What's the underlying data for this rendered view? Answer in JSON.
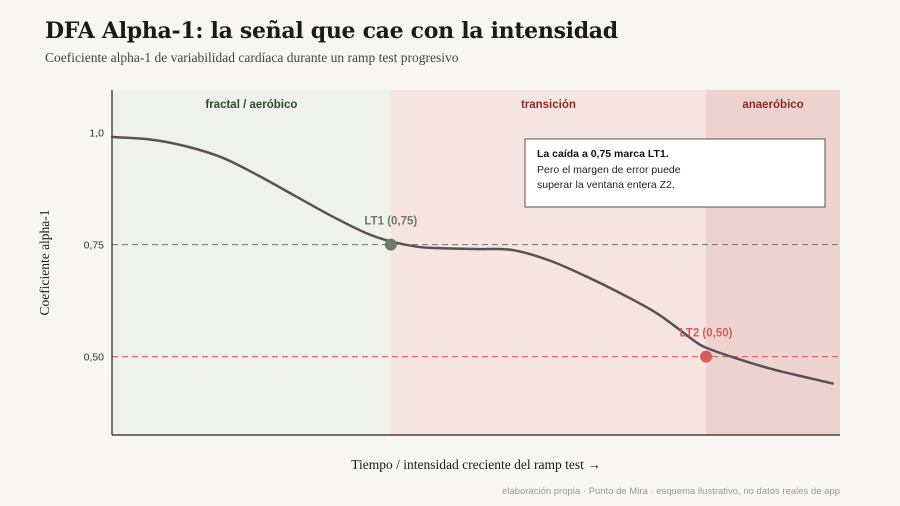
{
  "title": "DFA Alpha-1: la señal que cae con la intensidad",
  "subtitle": "Coeficiente alpha-1 de variabilidad cardíaca durante un ramp test progresivo",
  "footer": "elaboración propia · Punto de Mira · esquema ilustrativo, no datos reales de app",
  "colors": {
    "zone_aerobic": "#eff1ec",
    "zone_transition": "#f6e4e1",
    "zone_anaerobic": "#edd3cf",
    "curve": "#5a5252",
    "lt1": "#6f7a6a",
    "lt2": "#d45f5a",
    "label_aerobic": "#2f4a34",
    "label_other": "#8a2d2a"
  },
  "chart_data": {
    "type": "line",
    "title": "DFA Alpha-1: la señal que cae con la intensidad",
    "subtitle": "Coeficiente alpha-1 de variabilidad cardíaca durante un ramp test progresivo",
    "xlabel": "Tiempo / intensidad creciente del ramp test →",
    "ylabel": "Coeficiente alpha-1",
    "xlim": [
      0,
      100
    ],
    "ylim": [
      0.325,
      1.095
    ],
    "yticks": [
      1.0,
      0.75,
      0.5
    ],
    "ytick_labels": [
      "1,0",
      "0,75",
      "0,50"
    ],
    "grid": false,
    "zones": [
      {
        "label": "fractal / aeróbico",
        "x0": 0,
        "x1": 38.3
      },
      {
        "label": "transición",
        "x0": 38.3,
        "x1": 81.6
      },
      {
        "label": "anaeróbico",
        "x0": 81.6,
        "x1": 100
      }
    ],
    "thresholds": [
      {
        "label": "LT1 (0,75)",
        "y": 0.75,
        "x": 38.3
      },
      {
        "label": "LT2 (0,50)",
        "y": 0.5,
        "x": 81.6
      }
    ],
    "series": [
      {
        "x": [
          0,
          5,
          10,
          15,
          20,
          25,
          30,
          35,
          38.3,
          42,
          45,
          50,
          55,
          60,
          65,
          70,
          75,
          80,
          81.6,
          85,
          90,
          95,
          99
        ],
        "values": [
          0.99,
          0.985,
          0.97,
          0.945,
          0.905,
          0.86,
          0.815,
          0.775,
          0.757,
          0.745,
          0.742,
          0.74,
          0.738,
          0.715,
          0.68,
          0.64,
          0.595,
          0.535,
          0.52,
          0.5,
          0.475,
          0.455,
          0.44
        ]
      }
    ],
    "annotation": {
      "bold": "La caída a 0,75 marca LT1.",
      "lines": [
        "Pero el margen de error puede",
        "superar la ventana entera Z2."
      ]
    }
  }
}
